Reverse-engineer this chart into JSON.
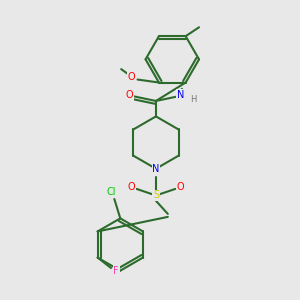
{
  "background_color": "#e8e8e8",
  "bond_color": "#2d6b2d",
  "atom_colors": {
    "O": "#ff0000",
    "N": "#0000ee",
    "S": "#cccc00",
    "Cl": "#00cc00",
    "F": "#ee44aa",
    "H": "#777777",
    "C": "#2d6b2d"
  }
}
